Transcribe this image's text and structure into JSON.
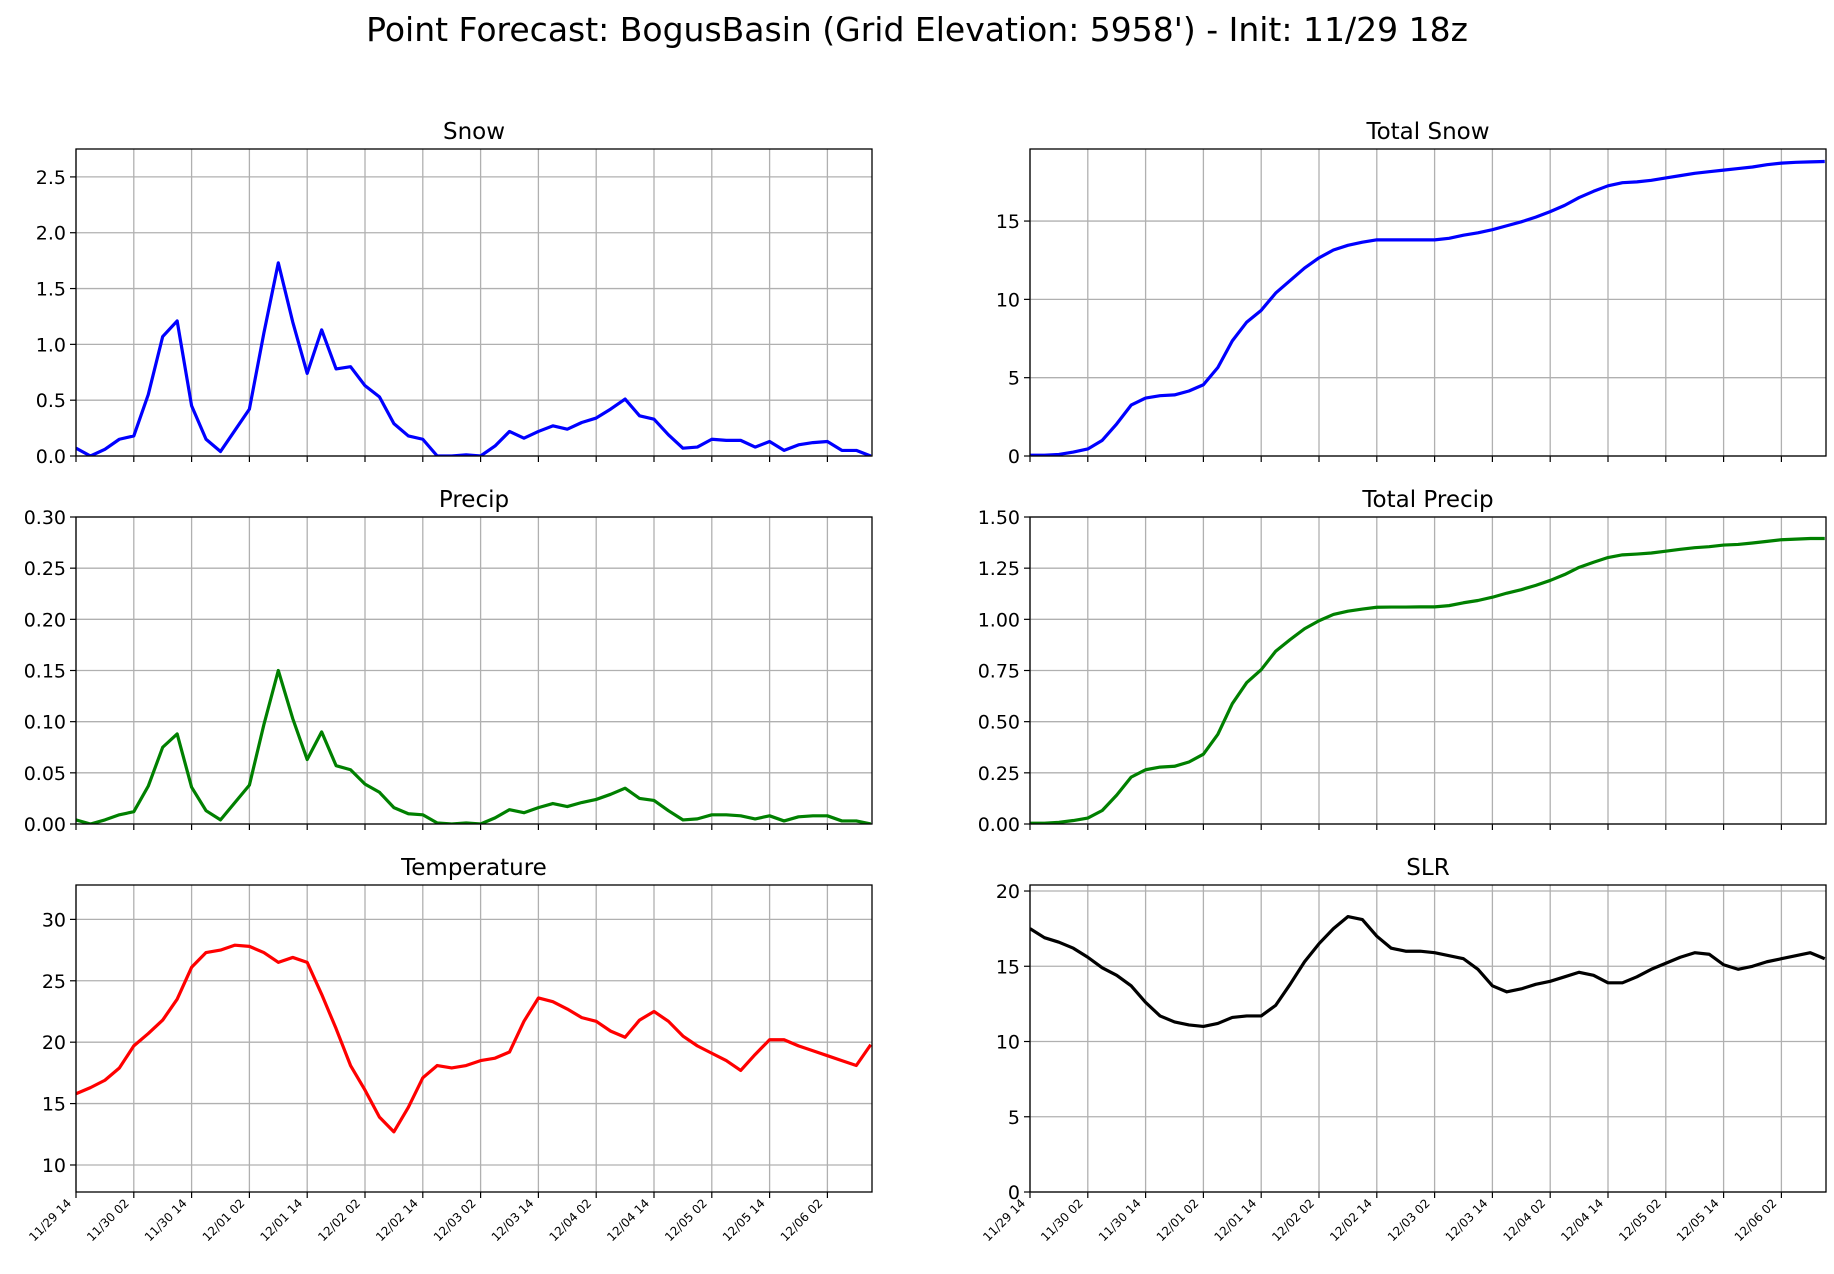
{
  "suptitle": "Point Forecast: BogusBasin (Grid Elevation: 5958') - Init: 11/29 18z",
  "x_tick_labels": [
    "11/29 14",
    "11/30 02",
    "11/30 14",
    "12/01 02",
    "12/01 14",
    "12/02 02",
    "12/02 14",
    "12/03 02",
    "12/03 14",
    "12/04 02",
    "12/04 14",
    "12/05 02",
    "12/05 14",
    "12/06 02"
  ],
  "chart_data": [
    {
      "type": "line",
      "title": "Snow",
      "color": "#0000ff",
      "ylim": [
        0,
        2.75
      ],
      "yticks": [
        0,
        0.5,
        1.0,
        1.5,
        2.0,
        2.5
      ],
      "ytick_labels": [
        "0.0",
        "0.5",
        "1.0",
        "1.5",
        "2.0",
        "2.5"
      ],
      "grid": true,
      "values": [
        0.07,
        0.0,
        0.06,
        0.15,
        0.18,
        0.55,
        1.07,
        1.21,
        0.45,
        0.15,
        0.04,
        0.23,
        0.42,
        1.1,
        1.73,
        1.2,
        0.74,
        1.13,
        0.78,
        0.8,
        0.63,
        0.53,
        0.29,
        0.18,
        0.15,
        0.0,
        0.0,
        0.01,
        0.0,
        0.09,
        0.22,
        0.16,
        0.22,
        0.27,
        0.24,
        0.3,
        0.34,
        0.42,
        0.51,
        0.36,
        0.33,
        0.19,
        0.07,
        0.08,
        0.15,
        0.14,
        0.14,
        0.08,
        0.13,
        0.05,
        0.1,
        0.12,
        0.13,
        0.05,
        0.05,
        0.0
      ]
    },
    {
      "type": "line",
      "title": "Total Snow",
      "color": "#0000ff",
      "ylim": [
        0,
        19.6
      ],
      "yticks": [
        0,
        5,
        10,
        15
      ],
      "ytick_labels": [
        "0",
        "5",
        "10",
        "15"
      ],
      "grid": true,
      "values": [
        0.05,
        0.05,
        0.1,
        0.25,
        0.45,
        1.0,
        2.05,
        3.25,
        3.7,
        3.85,
        3.9,
        4.15,
        4.55,
        5.65,
        7.35,
        8.55,
        9.3,
        10.4,
        11.2,
        12.0,
        12.65,
        13.15,
        13.45,
        13.65,
        13.8,
        13.8,
        13.8,
        13.8,
        13.8,
        13.9,
        14.1,
        14.25,
        14.45,
        14.7,
        14.95,
        15.25,
        15.6,
        16.0,
        16.5,
        16.9,
        17.25,
        17.45,
        17.5,
        17.6,
        17.75,
        17.9,
        18.05,
        18.15,
        18.25,
        18.35,
        18.45,
        18.6,
        18.7,
        18.75,
        18.78,
        18.8
      ]
    },
    {
      "type": "line",
      "title": "Precip",
      "color": "#008000",
      "ylim": [
        0,
        0.3
      ],
      "yticks": [
        0,
        0.05,
        0.1,
        0.15,
        0.2,
        0.25,
        0.3
      ],
      "ytick_labels": [
        "0.00",
        "0.05",
        "0.10",
        "0.15",
        "0.20",
        "0.25",
        "0.30"
      ],
      "grid": true,
      "values": [
        0.004,
        0.0,
        0.004,
        0.009,
        0.012,
        0.037,
        0.075,
        0.088,
        0.036,
        0.013,
        0.004,
        0.021,
        0.038,
        0.097,
        0.15,
        0.103,
        0.063,
        0.09,
        0.057,
        0.053,
        0.039,
        0.031,
        0.016,
        0.01,
        0.009,
        0.001,
        0.0,
        0.001,
        0.0,
        0.006,
        0.014,
        0.011,
        0.016,
        0.02,
        0.017,
        0.021,
        0.024,
        0.029,
        0.035,
        0.025,
        0.023,
        0.013,
        0.004,
        0.005,
        0.009,
        0.009,
        0.008,
        0.005,
        0.008,
        0.003,
        0.007,
        0.008,
        0.008,
        0.003,
        0.003,
        0.0
      ]
    },
    {
      "type": "line",
      "title": "Total Precip",
      "color": "#008000",
      "ylim": [
        0,
        1.5
      ],
      "yticks": [
        0,
        0.25,
        0.5,
        0.75,
        1.0,
        1.25,
        1.5
      ],
      "ytick_labels": [
        "0.00",
        "0.25",
        "0.50",
        "0.75",
        "1.00",
        "1.25",
        "1.50"
      ],
      "grid": true,
      "values": [
        0.004,
        0.004,
        0.008,
        0.017,
        0.029,
        0.066,
        0.141,
        0.229,
        0.265,
        0.278,
        0.282,
        0.303,
        0.341,
        0.438,
        0.588,
        0.691,
        0.754,
        0.844,
        0.901,
        0.954,
        0.993,
        1.024,
        1.04,
        1.05,
        1.059,
        1.06,
        1.06,
        1.061,
        1.061,
        1.067,
        1.081,
        1.092,
        1.108,
        1.128,
        1.145,
        1.166,
        1.19,
        1.219,
        1.254,
        1.279,
        1.302,
        1.315,
        1.319,
        1.324,
        1.333,
        1.342,
        1.35,
        1.355,
        1.363,
        1.366,
        1.373,
        1.381,
        1.389,
        1.392,
        1.395,
        1.395
      ]
    },
    {
      "type": "line",
      "title": "Temperature",
      "color": "#ff0000",
      "ylim": [
        7.8,
        32.8
      ],
      "yticks": [
        10,
        15,
        20,
        25,
        30
      ],
      "ytick_labels": [
        "10",
        "15",
        "20",
        "25",
        "30"
      ],
      "grid": true,
      "values": [
        15.8,
        16.3,
        16.9,
        17.9,
        19.7,
        20.7,
        21.8,
        23.5,
        26.1,
        27.3,
        27.5,
        27.9,
        27.8,
        27.3,
        26.5,
        26.9,
        26.5,
        23.9,
        21.1,
        18.1,
        16.1,
        13.9,
        12.7,
        14.7,
        17.1,
        18.1,
        17.9,
        18.1,
        18.5,
        18.7,
        19.2,
        21.7,
        23.6,
        23.3,
        22.7,
        22.0,
        21.7,
        20.9,
        20.4,
        21.8,
        22.5,
        21.7,
        20.5,
        19.7,
        19.1,
        18.5,
        17.7,
        19.0,
        20.2,
        20.2,
        19.7,
        19.3,
        18.9,
        18.5,
        18.1,
        19.8
      ]
    },
    {
      "type": "line",
      "title": "SLR",
      "color": "#000000",
      "ylim": [
        0,
        20.4
      ],
      "yticks": [
        0,
        5,
        10,
        15,
        20
      ],
      "ytick_labels": [
        "0",
        "5",
        "10",
        "15",
        "20"
      ],
      "grid": true,
      "values": [
        17.5,
        16.9,
        16.6,
        16.2,
        15.6,
        14.9,
        14.4,
        13.7,
        12.6,
        11.7,
        11.3,
        11.1,
        11.0,
        11.2,
        11.6,
        11.7,
        11.7,
        12.4,
        13.8,
        15.3,
        16.5,
        17.5,
        18.3,
        18.1,
        17.0,
        16.2,
        16.0,
        16.0,
        15.9,
        15.7,
        15.5,
        14.8,
        13.7,
        13.3,
        13.5,
        13.8,
        14.0,
        14.3,
        14.6,
        14.4,
        13.9,
        13.9,
        14.3,
        14.8,
        15.2,
        15.6,
        15.9,
        15.8,
        15.1,
        14.8,
        15.0,
        15.3,
        15.5,
        15.7,
        15.9,
        15.5
      ]
    }
  ]
}
